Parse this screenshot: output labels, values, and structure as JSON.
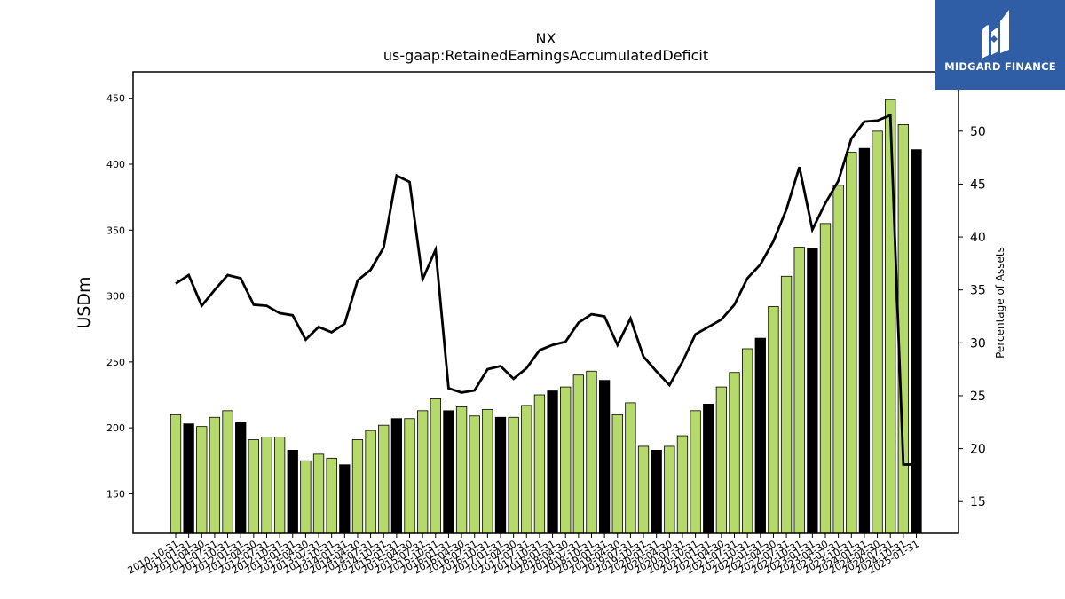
{
  "brand": {
    "name": "MIDGARD FINANCE",
    "color": "#2f5ea7"
  },
  "chart_data": {
    "type": "bar",
    "title": "NX",
    "subtitle": "us-gaap:RetainedEarningsAccumulatedDeficit",
    "ylabel": "USDm",
    "y2label": "Percentage of Assets",
    "ylim": [
      120,
      470
    ],
    "y2lim": [
      12.0,
      55.6
    ],
    "yticks": [
      150,
      200,
      250,
      300,
      350,
      400,
      450
    ],
    "y2ticks": [
      15,
      20,
      25,
      30,
      35,
      40,
      45,
      50
    ],
    "bar_colors": {
      "quarter": "#b5d96b",
      "fiscal_year_end": "#000000"
    },
    "line_color": "#000000",
    "categories": [
      "2010-10-31",
      "2011-01-31",
      "2011-04-30",
      "2011-07-31",
      "2011-10-31",
      "2012-01-31",
      "2012-04-30",
      "2012-07-31",
      "2012-10-31",
      "2013-01-31",
      "2013-04-30",
      "2013-07-31",
      "2013-10-31",
      "2014-01-31",
      "2014-04-30",
      "2014-07-31",
      "2014-10-31",
      "2015-01-31",
      "2015-04-30",
      "2015-07-31",
      "2015-10-31",
      "2016-01-31",
      "2016-04-30",
      "2016-07-31",
      "2016-10-31",
      "2017-01-31",
      "2017-04-30",
      "2017-07-31",
      "2017-10-31",
      "2018-01-31",
      "2018-04-30",
      "2018-07-31",
      "2018-10-31",
      "2019-01-31",
      "2019-04-30",
      "2019-07-31",
      "2019-10-31",
      "2020-01-31",
      "2020-04-30",
      "2020-07-31",
      "2020-10-31",
      "2021-01-31",
      "2021-04-30",
      "2021-07-31",
      "2021-10-31",
      "2022-01-31",
      "2022-04-30",
      "2022-07-31",
      "2022-10-31",
      "2023-01-31",
      "2023-04-30",
      "2023-07-31",
      "2023-10-31",
      "2024-01-31",
      "2024-04-30",
      "2024-07-31",
      "2024-10-31",
      "2025-01-31"
    ],
    "series": [
      {
        "name": "Retained Earnings",
        "type": "bar",
        "axis": "left",
        "values": [
          210,
          203,
          201,
          208,
          213,
          204,
          191,
          193,
          193,
          183,
          175,
          180,
          177,
          172,
          191,
          198,
          202,
          207,
          207,
          213,
          222,
          213,
          216,
          209,
          214,
          208,
          208,
          217,
          225,
          228,
          231,
          240,
          243,
          236,
          210,
          219,
          186,
          183,
          186,
          194,
          213,
          218,
          231,
          242,
          260,
          268,
          292,
          315,
          337,
          336,
          355,
          384,
          409,
          412,
          425,
          449,
          430,
          411
        ],
        "highlight": [
          false,
          true,
          false,
          false,
          false,
          true,
          false,
          false,
          false,
          true,
          false,
          false,
          false,
          true,
          false,
          false,
          false,
          true,
          false,
          false,
          false,
          true,
          false,
          false,
          false,
          true,
          false,
          false,
          false,
          true,
          false,
          false,
          false,
          true,
          false,
          false,
          false,
          true,
          false,
          false,
          false,
          true,
          false,
          false,
          false,
          true,
          false,
          false,
          false,
          true,
          false,
          false,
          false,
          true,
          false,
          false,
          false,
          true
        ]
      },
      {
        "name": "Percentage of Assets",
        "type": "line",
        "axis": "right",
        "values": [
          35.6,
          36.4,
          33.5,
          35.0,
          36.4,
          36.1,
          33.6,
          33.5,
          32.8,
          32.6,
          30.3,
          31.5,
          31.0,
          31.8,
          35.9,
          36.9,
          39.0,
          45.8,
          45.2,
          36.0,
          38.8,
          25.7,
          25.3,
          25.5,
          27.5,
          27.8,
          26.6,
          27.6,
          29.3,
          29.8,
          30.1,
          31.9,
          32.7,
          32.5,
          29.8,
          32.3,
          28.7,
          27.3,
          26.0,
          28.2,
          30.8,
          31.5,
          32.2,
          33.6,
          36.1,
          37.4,
          39.6,
          42.6,
          46.6,
          40.7,
          43.2,
          45.3,
          49.3,
          50.9,
          51.0,
          51.5,
          18.5,
          18.5
        ]
      }
    ],
    "grid": false,
    "legend": "none"
  }
}
